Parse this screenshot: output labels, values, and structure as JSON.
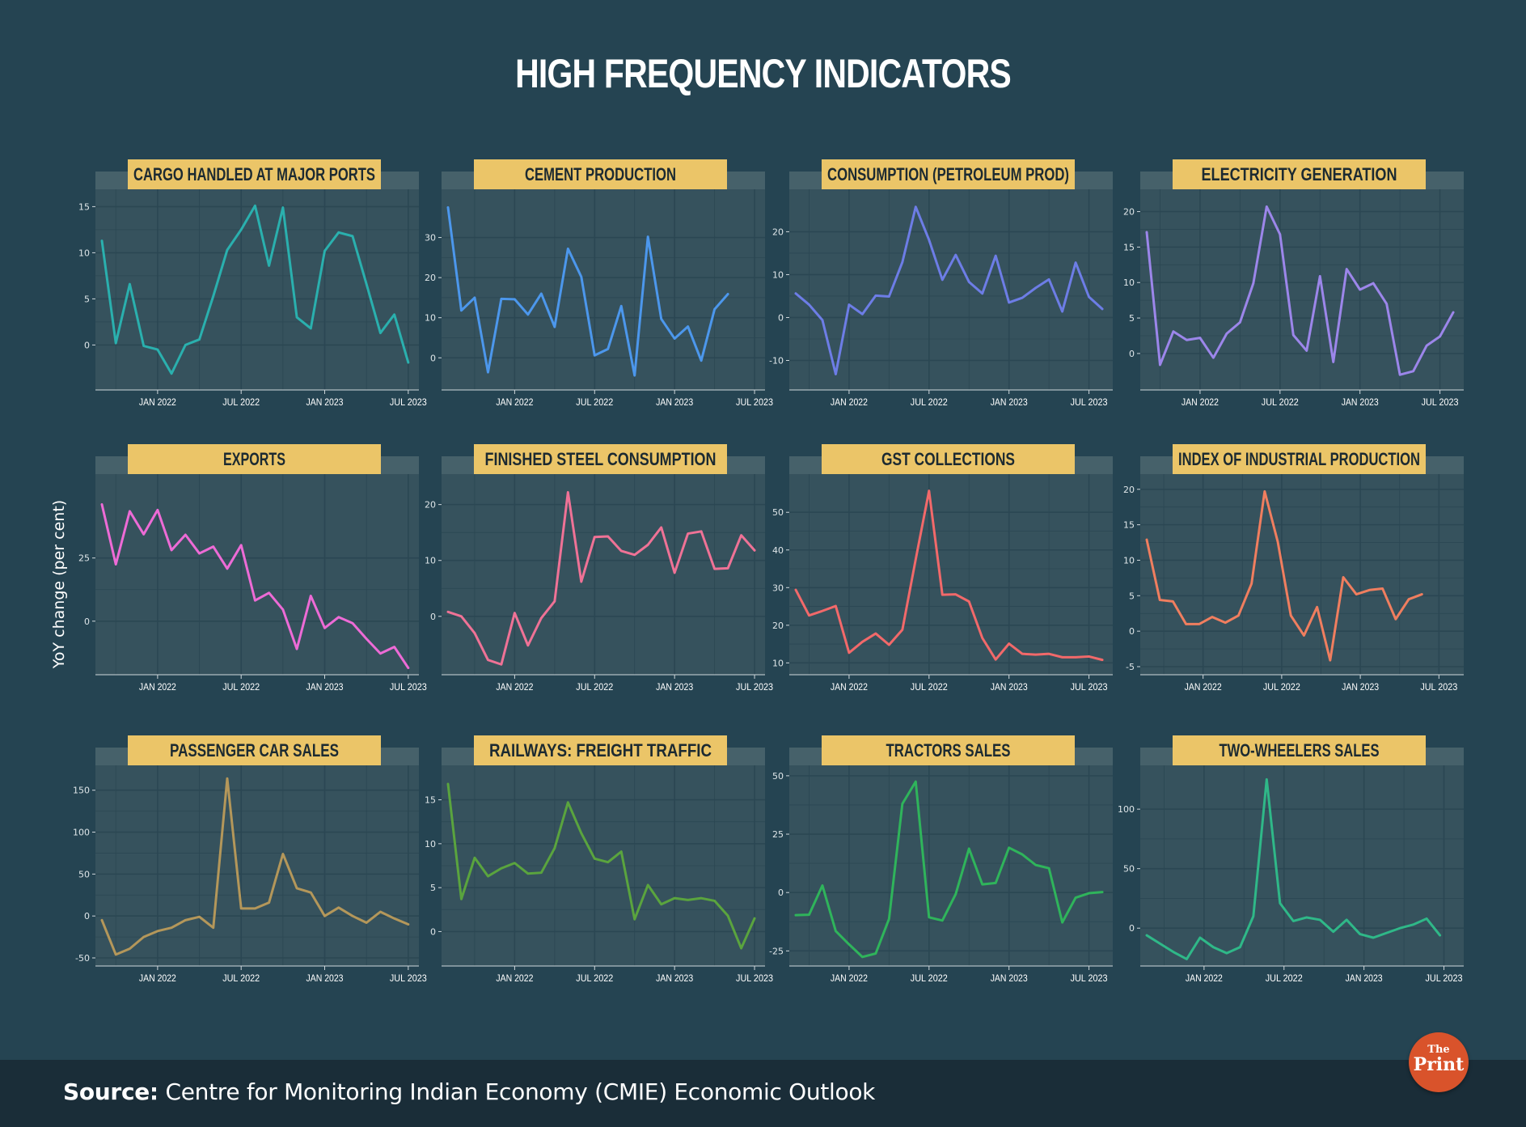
{
  "title": "HIGH FREQUENCY INDICATORS",
  "y_axis_label": "YoY change (per cent)",
  "source": {
    "label": "Source:",
    "text": " Centre for Monitoring Indian Economy (CMIE) Economic Outlook"
  },
  "logo": {
    "line1": "The",
    "line2": "Print"
  },
  "colors": {
    "background": "#254452",
    "panel": "#36525d",
    "strip_band": "#46616a",
    "header": "#ebc568",
    "grid": "#2b4753",
    "footer": "#1a2d38",
    "logo": "#d9532b"
  },
  "chart_data": [
    {
      "type": "line",
      "title": "CARGO HANDLED AT MAJOR PORTS",
      "color": "#2ab0ae",
      "x_range": [
        0,
        22.3
      ],
      "ylim": [
        -4,
        16
      ],
      "yticks": [
        {
          "label": "0",
          "value": 0
        },
        {
          "label": "5",
          "value": 5
        },
        {
          "label": "10",
          "value": 10
        },
        {
          "label": "15",
          "value": 15
        }
      ],
      "xticks": [
        {
          "label": "JAN 2022",
          "value": 4
        },
        {
          "label": "JUL 2022",
          "value": 10
        },
        {
          "label": "JAN 2023",
          "value": 16
        },
        {
          "label": "JUL 2023",
          "value": 22
        }
      ],
      "values": [
        11.3,
        0.2,
        6.6,
        -0.1,
        -0.5,
        -3.1,
        0,
        0.6,
        5.3,
        10.3,
        12.5,
        15.1,
        8.6,
        14.9,
        3,
        1.8,
        10.2,
        12.2,
        11.8,
        6.6,
        1.3,
        3.3,
        -1.9
      ]
    },
    {
      "type": "line",
      "title": "CEMENT PRODUCTION",
      "color": "#4c97ec",
      "x_range": [
        0,
        23.3
      ],
      "ylim": [
        -6,
        40
      ],
      "yticks": [
        {
          "label": "0",
          "value": 0
        },
        {
          "label": "10",
          "value": 10
        },
        {
          "label": "20",
          "value": 20
        },
        {
          "label": "30",
          "value": 30
        }
      ],
      "xticks": [
        {
          "label": "JAN 2022",
          "value": 5
        },
        {
          "label": "JUL 2022",
          "value": 11
        },
        {
          "label": "JAN 2023",
          "value": 17
        },
        {
          "label": "JUL 2023",
          "value": 23
        }
      ],
      "values": [
        37.5,
        11.8,
        15,
        -3.6,
        14.7,
        14.6,
        10.8,
        16,
        7.7,
        27.2,
        20.2,
        0.6,
        2.2,
        12.9,
        -4.4,
        30.2,
        9.7,
        4.8,
        7.8,
        -0.7,
        12.1,
        15.9
      ]
    },
    {
      "type": "line",
      "title": "CONSUMPTION (PETROLEUM PROD)",
      "color": "#6d7de6",
      "x_range": [
        0,
        23.3
      ],
      "ylim": [
        -15,
        28
      ],
      "yticks": [
        {
          "label": "-10",
          "value": -10
        },
        {
          "label": "0",
          "value": 0
        },
        {
          "label": "10",
          "value": 10
        },
        {
          "label": "20",
          "value": 20
        }
      ],
      "xticks": [
        {
          "label": "JAN 2022",
          "value": 4
        },
        {
          "label": "JUL 2022",
          "value": 10
        },
        {
          "label": "JAN 2023",
          "value": 16
        },
        {
          "label": "JUL 2023",
          "value": 22
        }
      ],
      "values": [
        5.6,
        3,
        -0.6,
        -13.2,
        3,
        0.8,
        5.1,
        4.9,
        12.9,
        25.8,
        18.1,
        8.8,
        14.6,
        8.3,
        5.6,
        14.4,
        3.5,
        4.6,
        6.9,
        8.9,
        1.4,
        12.8,
        4.8,
        2
      ]
    },
    {
      "type": "line",
      "title": "ELECTRICITY GENERATION",
      "color": "#9c86ea",
      "x_range": [
        0,
        23.3
      ],
      "ylim": [
        -4,
        22
      ],
      "yticks": [
        {
          "label": "0",
          "value": 0
        },
        {
          "label": "5",
          "value": 5
        },
        {
          "label": "10",
          "value": 10
        },
        {
          "label": "15",
          "value": 15
        },
        {
          "label": "20",
          "value": 20
        }
      ],
      "xticks": [
        {
          "label": "JAN 2022",
          "value": 4
        },
        {
          "label": "JUL 2022",
          "value": 10
        },
        {
          "label": "JAN 2023",
          "value": 16
        },
        {
          "label": "JUL 2023",
          "value": 22
        }
      ],
      "values": [
        17.1,
        -1.6,
        3.1,
        1.9,
        2.2,
        -0.6,
        2.8,
        4.4,
        9.9,
        20.7,
        16.8,
        2.6,
        0.4,
        10.9,
        -1.2,
        11.9,
        9,
        9.9,
        7,
        -3,
        -2.5,
        1.1,
        2.4,
        5.8
      ]
    },
    {
      "type": "line",
      "title": "EXPORTS",
      "color": "#ed6bd6",
      "x_range": [
        0,
        22.3
      ],
      "ylim": [
        -18,
        55
      ],
      "yticks": [
        {
          "label": "0",
          "value": 0
        },
        {
          "label": "25",
          "value": 25
        }
      ],
      "xticks": [
        {
          "label": "JAN 2022",
          "value": 4
        },
        {
          "label": "JUL 2022",
          "value": 10
        },
        {
          "label": "JAN 2023",
          "value": 16
        },
        {
          "label": "JUL 2023",
          "value": 22
        }
      ],
      "values": [
        46.2,
        22.5,
        43.5,
        34.4,
        44,
        28.1,
        34.2,
        26.8,
        29.5,
        20.8,
        30.1,
        8.2,
        11.2,
        4.6,
        -11,
        10,
        -2.7,
        1.6,
        -0.8,
        -7,
        -12.8,
        -10.2,
        -18.5
      ]
    },
    {
      "type": "line",
      "title": "FINISHED STEEL CONSUMPTION",
      "color": "#ef7296",
      "x_range": [
        0,
        23.3
      ],
      "ylim": [
        -9,
        24
      ],
      "yticks": [
        {
          "label": "0",
          "value": 0
        },
        {
          "label": "10",
          "value": 10
        },
        {
          "label": "20",
          "value": 20
        }
      ],
      "xticks": [
        {
          "label": "JAN 2022",
          "value": 5
        },
        {
          "label": "JUL 2022",
          "value": 11
        },
        {
          "label": "JAN 2023",
          "value": 17
        },
        {
          "label": "JUL 2023",
          "value": 23
        }
      ],
      "values": [
        0.8,
        0,
        -3,
        -7.8,
        -8.6,
        0.6,
        -5.2,
        -0.3,
        2.7,
        22.2,
        6.2,
        14.2,
        14.3,
        11.7,
        11,
        12.8,
        15.9,
        7.8,
        14.8,
        15.2,
        8.5,
        8.6,
        14.5,
        11.8
      ]
    },
    {
      "type": "line",
      "title": "GST COLLECTIONS",
      "color": "#f2696a",
      "x_range": [
        0,
        23.3
      ],
      "ylim": [
        9,
        58
      ],
      "yticks": [
        {
          "label": "10",
          "value": 10
        },
        {
          "label": "20",
          "value": 20
        },
        {
          "label": "30",
          "value": 30
        },
        {
          "label": "40",
          "value": 40
        },
        {
          "label": "50",
          "value": 50
        }
      ],
      "xticks": [
        {
          "label": "JAN 2022",
          "value": 4
        },
        {
          "label": "JUL 2022",
          "value": 10
        },
        {
          "label": "JAN 2023",
          "value": 16
        },
        {
          "label": "JUL 2023",
          "value": 22
        }
      ],
      "values": [
        29.4,
        22.6,
        23.8,
        25.1,
        12.7,
        15.6,
        17.8,
        14.8,
        18.8,
        37.5,
        55.7,
        28.1,
        28.2,
        26.3,
        16.6,
        10.9,
        15.1,
        12.4,
        12.2,
        12.4,
        11.5,
        11.5,
        11.7,
        10.8
      ]
    },
    {
      "type": "line",
      "title": "INDEX OF INDUSTRIAL PRODUCTION",
      "color": "#f07e5f",
      "x_range": [
        0,
        23.7
      ],
      "ylim": [
        -5,
        21
      ],
      "yticks": [
        {
          "label": "-5",
          "value": -5
        },
        {
          "label": "0",
          "value": 0
        },
        {
          "label": "5",
          "value": 5
        },
        {
          "label": "10",
          "value": 10
        },
        {
          "label": "15",
          "value": 15
        },
        {
          "label": "20",
          "value": 20
        }
      ],
      "xticks": [
        {
          "label": "JAN 2022",
          "value": 4.3
        },
        {
          "label": "JUL 2022",
          "value": 10.3
        },
        {
          "label": "JAN 2023",
          "value": 16.3
        },
        {
          "label": "JUL 2023",
          "value": 22.3
        }
      ],
      "values": [
        12.9,
        4.4,
        4.2,
        1,
        1,
        2,
        1.2,
        2.2,
        6.7,
        19.7,
        12.6,
        2.2,
        -0.6,
        3.4,
        -4.1,
        7.6,
        5.2,
        5.8,
        6,
        1.7,
        4.5,
        5.2
      ]
    },
    {
      "type": "line",
      "title": "PASSENGER CAR SALES",
      "color": "#b4975a",
      "x_range": [
        0,
        22.3
      ],
      "ylim": [
        -50,
        170
      ],
      "yticks": [
        {
          "label": "-50",
          "value": -50
        },
        {
          "label": "0",
          "value": 0
        },
        {
          "label": "50",
          "value": 50
        },
        {
          "label": "100",
          "value": 100
        },
        {
          "label": "150",
          "value": 150
        }
      ],
      "xticks": [
        {
          "label": "JAN 2022",
          "value": 4
        },
        {
          "label": "JUL 2022",
          "value": 10
        },
        {
          "label": "JAN 2023",
          "value": 16
        },
        {
          "label": "JUL 2023",
          "value": 22
        }
      ],
      "values": [
        -5,
        -46,
        -39,
        -25,
        -18,
        -14,
        -5,
        -1,
        -14,
        164,
        9,
        9,
        16,
        74,
        33,
        28,
        0,
        10,
        0,
        -8,
        5,
        -3,
        -10
      ]
    },
    {
      "type": "line",
      "title": "RAILWAYS: FREIGHT TRAFFIC",
      "color": "#5aa43e",
      "x_range": [
        0,
        23.3
      ],
      "ylim": [
        -3,
        18
      ],
      "yticks": [
        {
          "label": "0",
          "value": 0
        },
        {
          "label": "5",
          "value": 5
        },
        {
          "label": "10",
          "value": 10
        },
        {
          "label": "15",
          "value": 15
        }
      ],
      "xticks": [
        {
          "label": "JAN 2022",
          "value": 5
        },
        {
          "label": "JUL 2022",
          "value": 11
        },
        {
          "label": "JAN 2023",
          "value": 17
        },
        {
          "label": "JUL 2023",
          "value": 23
        }
      ],
      "values": [
        16.8,
        3.7,
        8.4,
        6.3,
        7.2,
        7.8,
        6.6,
        6.7,
        9.5,
        14.7,
        11.2,
        8.3,
        7.9,
        9.1,
        1.4,
        5.3,
        3.1,
        3.8,
        3.6,
        3.8,
        3.5,
        1.8,
        -1.9,
        1.5
      ]
    },
    {
      "type": "line",
      "title": "TRACTORS SALES",
      "color": "#2fb45b",
      "x_range": [
        0,
        23.3
      ],
      "ylim": [
        -28,
        51
      ],
      "yticks": [
        {
          "label": "-25",
          "value": -25
        },
        {
          "label": "0",
          "value": 0
        },
        {
          "label": "25",
          "value": 25
        },
        {
          "label": "50",
          "value": 50
        }
      ],
      "xticks": [
        {
          "label": "JAN 2022",
          "value": 4
        },
        {
          "label": "JUL 2022",
          "value": 10
        },
        {
          "label": "JAN 2023",
          "value": 16
        },
        {
          "label": "JUL 2023",
          "value": 22
        }
      ],
      "values": [
        -9.7,
        -9.5,
        3,
        -16.5,
        -22.2,
        -27.6,
        -26.1,
        -11.3,
        38,
        47.5,
        -10.6,
        -12,
        -0.7,
        18.8,
        3.5,
        4.1,
        19.2,
        16.3,
        11.8,
        10.4,
        -12.8,
        -2.2,
        -0.3,
        0.2
      ]
    },
    {
      "type": "line",
      "title": "TWO-WHEELERS SALES",
      "color": "#2fb888",
      "x_range": [
        0,
        23.3
      ],
      "ylim": [
        -25,
        130
      ],
      "yticks": [
        {
          "label": "0",
          "value": 0
        },
        {
          "label": "50",
          "value": 50
        },
        {
          "label": "100",
          "value": 100
        }
      ],
      "xticks": [
        {
          "label": "JAN 2022",
          "value": 4.3
        },
        {
          "label": "JUL 2022",
          "value": 10.3
        },
        {
          "label": "JAN 2023",
          "value": 16.3
        },
        {
          "label": "JUL 2023",
          "value": 22.3
        }
      ],
      "values": [
        -6,
        -13,
        -20,
        -26,
        -8,
        -16,
        -21,
        -16,
        10,
        125,
        21,
        6,
        9,
        7,
        -3,
        7,
        -5,
        -8,
        -4,
        0,
        3,
        8,
        -6
      ]
    }
  ]
}
